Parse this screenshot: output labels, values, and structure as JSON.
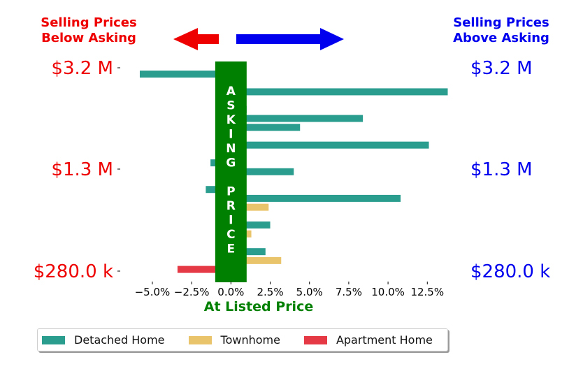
{
  "header": {
    "left_label_line1": "Selling Prices",
    "left_label_line2": "Below Asking",
    "right_label_line1": "Selling Prices",
    "right_label_line2": "Above Asking"
  },
  "colors": {
    "below": "#ee0000",
    "above": "#0000ee",
    "asking": "#008000",
    "detached": "#2a9d8f",
    "townhome": "#e9c46a",
    "apartment": "#e63946"
  },
  "center_band_label": "ASKING PRICE",
  "chart_data": {
    "type": "bar",
    "orientation": "horizontal",
    "xlabel": "At Listed Price",
    "xlim": [
      -6.6,
      14.0
    ],
    "x_ticks": [
      -5.0,
      -2.5,
      0.0,
      2.5,
      5.0,
      7.5,
      10.0,
      12.5
    ],
    "x_tick_labels": [
      "−5.0%",
      "−2.5%",
      "0.0%",
      "2.5%",
      "5.0%",
      "7.5%",
      "10.0%",
      "12.5%"
    ],
    "y_tick_labels_left": [
      "$3.2 M",
      "$1.3 M",
      "$280.0 k"
    ],
    "y_tick_labels_right": [
      "$3.2 M",
      "$1.3 M",
      "$280.0 k"
    ],
    "asking_band": [
      -1.0,
      1.0
    ],
    "series": [
      {
        "name": "Detached Home",
        "color": "#2a9d8f",
        "values": [
          -5.8,
          0.7,
          13.8,
          0.7,
          1.0,
          8.4,
          4.4,
          0.7,
          12.6,
          0.7,
          -1.3,
          4.0,
          0.7,
          -1.6,
          10.8,
          null,
          0.7,
          2.5,
          null,
          0.7,
          2.2,
          null,
          null,
          null
        ]
      },
      {
        "name": "Townhome",
        "color": "#e9c46a",
        "values": [
          null,
          null,
          null,
          null,
          null,
          null,
          null,
          null,
          null,
          null,
          null,
          null,
          null,
          null,
          null,
          2.4,
          null,
          null,
          1.3,
          null,
          null,
          3.2,
          null,
          null
        ]
      },
      {
        "name": "Apartment Home",
        "color": "#e63946",
        "values": [
          null,
          null,
          null,
          null,
          null,
          null,
          null,
          null,
          null,
          null,
          null,
          null,
          null,
          null,
          null,
          null,
          null,
          null,
          null,
          null,
          null,
          null,
          -3.4,
          0.1
        ]
      }
    ]
  },
  "legend": [
    {
      "label": "Detached Home",
      "color": "#2a9d8f"
    },
    {
      "label": "Townhome",
      "color": "#e9c46a"
    },
    {
      "label": "Apartment Home",
      "color": "#e63946"
    }
  ]
}
